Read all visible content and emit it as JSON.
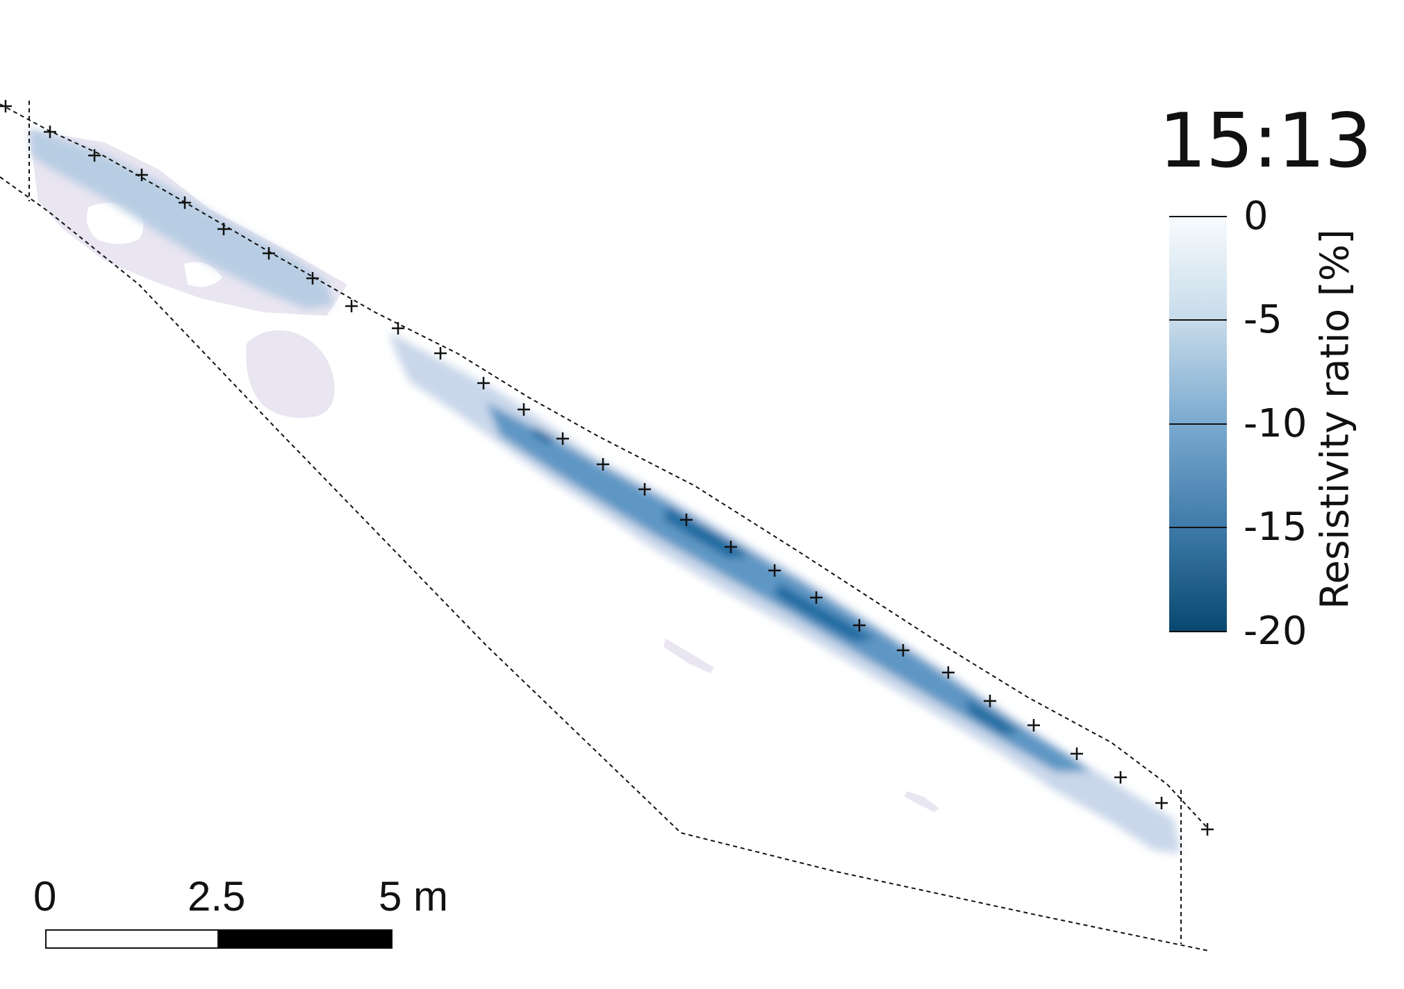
{
  "timestamp": "15:13",
  "colorbar": {
    "title": "Resistivity ratio [%]",
    "ticks": [
      "0",
      "-5",
      "-10",
      "-15",
      "-20"
    ],
    "range": [
      -20,
      0
    ],
    "colors": {
      "high": "#f4f7fb",
      "low": "#08486f"
    }
  },
  "scale_bar": {
    "labels": [
      "0",
      "2.5",
      "5 m"
    ]
  },
  "colors": {
    "outline": "#111111",
    "faint_anomaly": "#e8e4f0",
    "strong_anomaly": "#1a6fa6"
  }
}
